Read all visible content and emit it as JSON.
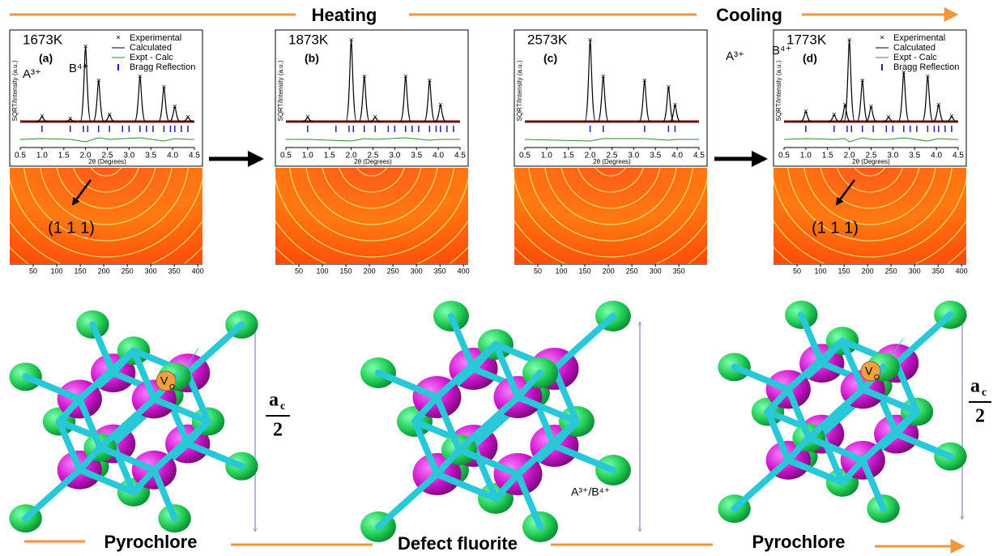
{
  "header": {
    "left": "Heating",
    "right": "Cooling"
  },
  "chart_data": [
    {
      "type": "line",
      "temperature": "1673K",
      "panel": "(a)",
      "x_label": "2θ (Degrees)",
      "y_label": "SQRT/Intensity (a.u.)",
      "legend": true,
      "xlim": [
        0.5,
        4.5
      ],
      "xticks": [
        0.5,
        {
          "value": 1,
          "label": "1.0"
        },
        1.5,
        {
          "value": 2,
          "label": "2.0"
        },
        2.5,
        {
          "value": 3,
          "label": "3.0"
        },
        3.5,
        {
          "value": 4,
          "label": "4.0"
        },
        4.5
      ],
      "ylim": [
        0,
        1
      ],
      "x": [
        1.0,
        1.65,
        2.0,
        2.3,
        2.55,
        3.25,
        3.8,
        4.05,
        4.35
      ],
      "series": [
        {
          "name": "Experimental",
          "color": "#b22222",
          "values": [
            0.06,
            0.03,
            0.92,
            0.5,
            0.08,
            0.55,
            0.42,
            0.18,
            0.05
          ]
        },
        {
          "name": "Calculated",
          "color": "#000000",
          "values": [
            0.06,
            0.03,
            0.92,
            0.5,
            0.08,
            0.55,
            0.42,
            0.18,
            0.05
          ]
        },
        {
          "name": "Expt - Calc",
          "color": "#2e8b2e",
          "values": [
            0.01,
            0,
            -0.03,
            0.02,
            0,
            0.02,
            -0.02,
            0.01,
            0
          ]
        },
        {
          "name": "Bragg Reflection",
          "color": "#1f1fb4",
          "x": [
            1.0,
            1.65,
            1.95,
            2.05,
            2.3,
            2.55,
            2.85,
            3.0,
            3.25,
            3.4,
            3.55,
            3.8,
            3.95,
            4.05,
            4.2,
            4.35
          ]
        }
      ],
      "detector": {
        "xlim": [
          0,
          410
        ],
        "xticks": [
          50,
          100,
          150,
          200,
          250,
          300,
          350,
          400
        ],
        "annotation": "(1 1 1)"
      }
    },
    {
      "type": "line",
      "temperature": "1873K",
      "panel": "(b)",
      "x_label": "2θ (Degrees)",
      "y_label": "SQRT/Intensity (a.u.)",
      "legend": false,
      "xlim": [
        0.5,
        4.5
      ],
      "xticks": [
        0.5,
        {
          "value": 1,
          "label": "1.0"
        },
        1.5,
        {
          "value": 2,
          "label": "2.0"
        },
        2.5,
        {
          "value": 3,
          "label": "3.0"
        },
        3.5,
        {
          "value": 4,
          "label": "4.0"
        },
        4.5
      ],
      "ylim": [
        0,
        1
      ],
      "x": [
        1.0,
        2.0,
        2.3,
        2.55,
        3.25,
        3.8,
        4.05
      ],
      "series": [
        {
          "color": "#b22222",
          "values": [
            0.05,
            1.0,
            0.55,
            0.05,
            0.55,
            0.5,
            0.2
          ]
        },
        {
          "color": "#000000",
          "values": [
            0.05,
            1.0,
            0.55,
            0.05,
            0.55,
            0.5,
            0.2
          ]
        },
        {
          "color": "#2e8b2e",
          "values": [
            0,
            -0.02,
            0.01,
            0,
            0.02,
            -0.01,
            0
          ]
        },
        {
          "color": "#1f1fb4",
          "x": [
            1.0,
            1.65,
            1.95,
            2.05,
            2.3,
            2.55,
            2.85,
            3.0,
            3.25,
            3.4,
            3.55,
            3.8,
            3.95,
            4.05,
            4.2,
            4.35
          ]
        }
      ],
      "detector": {
        "xlim": [
          0,
          410
        ],
        "xticks": [
          50,
          100,
          150,
          200,
          250,
          300,
          350,
          400
        ]
      }
    },
    {
      "type": "line",
      "temperature": "2573K",
      "panel": "(c)",
      "x_label": "2θ (Degrees)",
      "y_label": "SQRT/Intensity (a.u.)",
      "legend": false,
      "xlim": [
        0.5,
        4.5
      ],
      "xticks": [
        0.5,
        {
          "value": 1,
          "label": "1.0"
        },
        1.5,
        {
          "value": 2,
          "label": "2.0"
        },
        2.5,
        {
          "value": 3,
          "label": "3.0"
        },
        3.5,
        {
          "value": 4,
          "label": "4.0"
        },
        4.5
      ],
      "ylim": [
        0,
        1
      ],
      "x": [
        2.0,
        2.3,
        3.25,
        3.8,
        3.95
      ],
      "series": [
        {
          "color": "#b22222",
          "values": [
            1.0,
            0.55,
            0.5,
            0.42,
            0.2
          ]
        },
        {
          "color": "#000000",
          "values": [
            1.0,
            0.55,
            0.5,
            0.42,
            0.2
          ]
        },
        {
          "color": "#2e8b2e",
          "values": [
            -0.02,
            0.01,
            0.01,
            -0.01,
            0
          ]
        },
        {
          "color": "#1f1fb4",
          "x": [
            2.0,
            2.3,
            3.25,
            3.8,
            3.95
          ]
        }
      ],
      "detector": {
        "xlim": [
          0,
          410
        ],
        "xticks": [
          50,
          100,
          150,
          200,
          250,
          300,
          350
        ]
      }
    },
    {
      "type": "line",
      "temperature": "1773K",
      "panel": "(d)",
      "x_label": "2θ (Degrees)",
      "y_label": "SQRT/Intensity (a.u.)",
      "legend": true,
      "xlim": [
        0.5,
        4.5
      ],
      "xticks": [
        0.5,
        {
          "value": 1,
          "label": "1.0"
        },
        1.5,
        {
          "value": 2,
          "label": "2.0"
        },
        2.5,
        {
          "value": 3,
          "label": "3.0"
        },
        3.5,
        {
          "value": 4,
          "label": "4.0"
        },
        4.5
      ],
      "ylim": [
        0,
        1
      ],
      "x": [
        1.0,
        1.65,
        1.9,
        2.0,
        2.3,
        2.5,
        2.9,
        3.25,
        3.8,
        4.05,
        4.35
      ],
      "series": [
        {
          "name": "Experimental",
          "color": "#b22222",
          "values": [
            0.12,
            0.08,
            0.2,
            1.0,
            0.5,
            0.18,
            0.05,
            0.6,
            0.55,
            0.2,
            0.06
          ]
        },
        {
          "name": "Calculated",
          "color": "#000000",
          "values": [
            0.12,
            0.08,
            0.2,
            1.0,
            0.5,
            0.18,
            0.05,
            0.6,
            0.55,
            0.2,
            0.06
          ]
        },
        {
          "name": "Expt - Calc",
          "color": "#2e8b2e",
          "values": [
            0.01,
            0,
            0.01,
            -0.03,
            0.02,
            0,
            0,
            0.02,
            -0.02,
            0.01,
            0
          ]
        },
        {
          "name": "Bragg Reflection",
          "color": "#1f1fb4",
          "x": [
            1.0,
            1.65,
            1.95,
            2.05,
            2.3,
            2.55,
            2.85,
            3.0,
            3.25,
            3.4,
            3.55,
            3.8,
            3.95,
            4.05,
            4.2,
            4.35
          ]
        }
      ],
      "detector": {
        "xlim": [
          0,
          410
        ],
        "xticks": [
          50,
          100,
          150,
          200,
          250,
          300,
          350,
          400
        ],
        "annotation": "(1 1 1)"
      }
    }
  ],
  "structures": [
    {
      "name": "Pyrochlore",
      "atom_a": "A³⁺",
      "atom_b": "B⁴⁺",
      "vacancy": "V",
      "vacancy_sub": "O"
    },
    {
      "name": "Defect fluorite",
      "atom_mixed": "A³⁺/B⁴⁺"
    },
    {
      "name": "Pyrochlore",
      "atom_a": "A³⁺",
      "atom_b": "B⁴⁺",
      "vacancy": "V",
      "vacancy_sub": "O"
    }
  ],
  "lattice_label": {
    "symbol": "a",
    "subscript": "c",
    "denominator": "2"
  }
}
